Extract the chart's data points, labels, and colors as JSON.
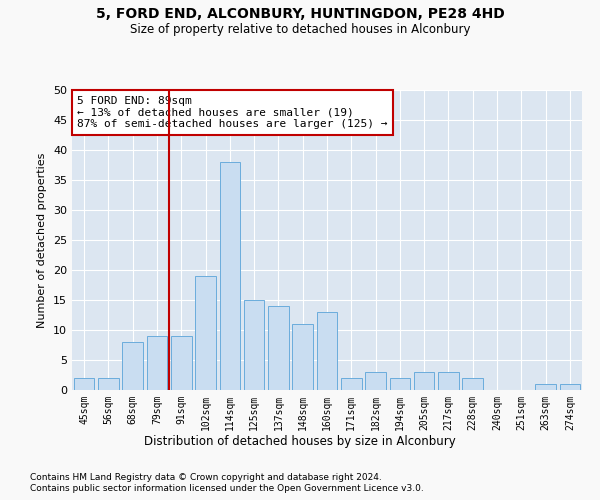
{
  "title1": "5, FORD END, ALCONBURY, HUNTINGDON, PE28 4HD",
  "title2": "Size of property relative to detached houses in Alconbury",
  "xlabel": "Distribution of detached houses by size in Alconbury",
  "ylabel": "Number of detached properties",
  "categories": [
    "45sqm",
    "56sqm",
    "68sqm",
    "79sqm",
    "91sqm",
    "102sqm",
    "114sqm",
    "125sqm",
    "137sqm",
    "148sqm",
    "160sqm",
    "171sqm",
    "182sqm",
    "194sqm",
    "205sqm",
    "217sqm",
    "228sqm",
    "240sqm",
    "251sqm",
    "263sqm",
    "274sqm"
  ],
  "values": [
    2,
    2,
    8,
    9,
    9,
    19,
    38,
    15,
    14,
    11,
    13,
    2,
    3,
    2,
    3,
    3,
    2,
    0,
    0,
    1,
    1
  ],
  "bar_color": "#c9ddf1",
  "bar_edge_color": "#6aacdc",
  "vline_x_index": 4,
  "vline_color": "#c00000",
  "annotation_text": "5 FORD END: 89sqm\n← 13% of detached houses are smaller (19)\n87% of semi-detached houses are larger (125) →",
  "annotation_box_color": "#ffffff",
  "annotation_box_edge_color": "#c00000",
  "ylim": [
    0,
    50
  ],
  "yticks": [
    0,
    5,
    10,
    15,
    20,
    25,
    30,
    35,
    40,
    45,
    50
  ],
  "footer1": "Contains HM Land Registry data © Crown copyright and database right 2024.",
  "footer2": "Contains public sector information licensed under the Open Government Licence v3.0.",
  "fig_bg_color": "#f9f9f9",
  "plot_bg_color": "#dce6f1",
  "grid_color": "#ffffff"
}
